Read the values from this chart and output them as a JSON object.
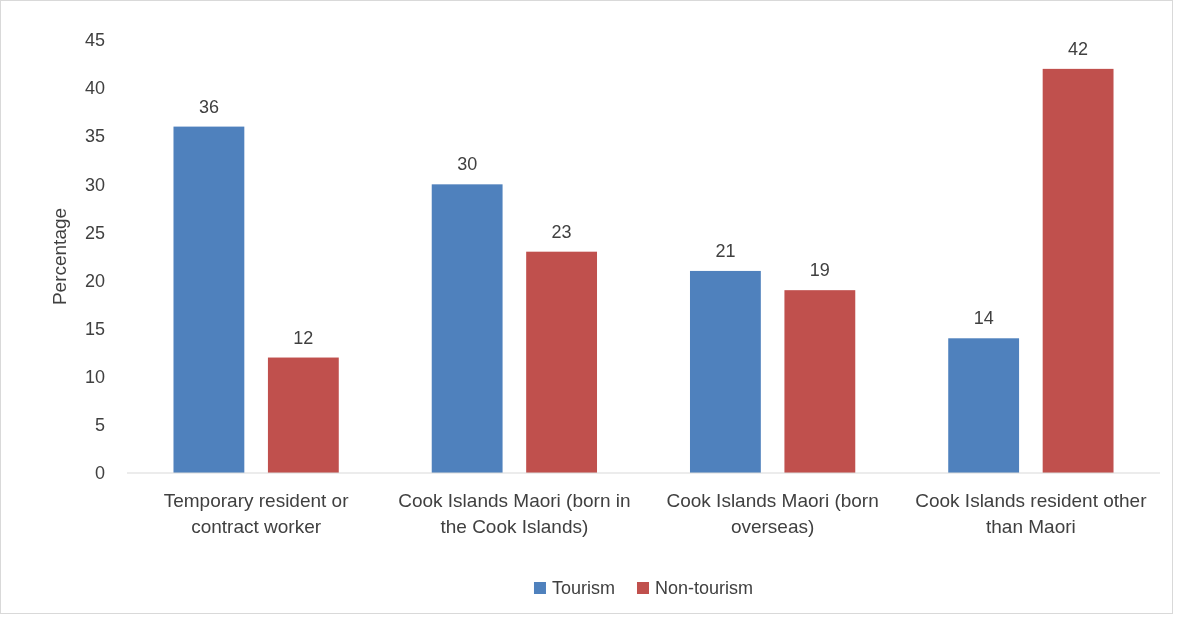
{
  "chart_data": {
    "type": "bar",
    "ylabel": "Percentage",
    "categories": [
      "Temporary resident or contract worker",
      "Cook Islands Maori (born in the Cook Islands)",
      "Cook Islands Maori (born overseas)",
      "Cook Islands resident other than Maori"
    ],
    "series": [
      {
        "name": "Tourism",
        "color": "#4f81bd",
        "values": [
          36,
          30,
          21,
          14
        ]
      },
      {
        "name": "Non-tourism",
        "color": "#c0504d",
        "values": [
          12,
          23,
          19,
          42
        ]
      }
    ],
    "ylim": [
      0,
      45
    ],
    "yticks": [
      0,
      5,
      10,
      15,
      20,
      25,
      30,
      35,
      40,
      45
    ],
    "data_labels": true,
    "legend": "bottom",
    "grid": false
  }
}
